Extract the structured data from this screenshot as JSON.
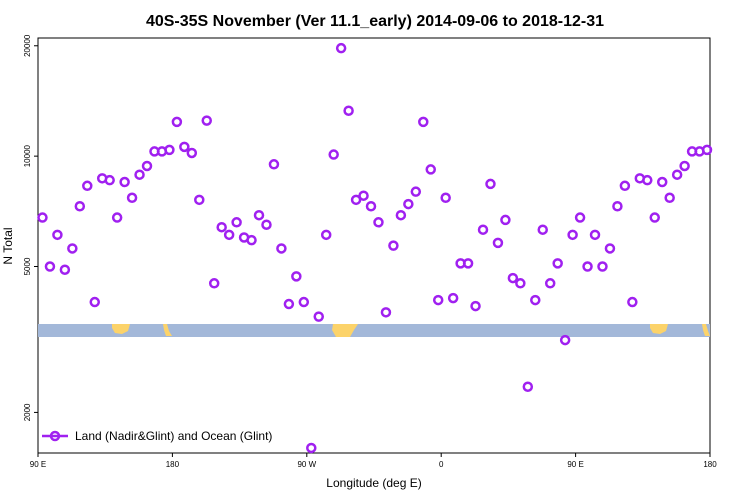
{
  "chart_data": {
    "type": "scatter",
    "title": "40S-35S November (Ver 11.1_early)   2014-09-06 to 2018-12-31",
    "xlabel": "Longitude (deg E)",
    "ylabel": "N Total",
    "y_scale": "log",
    "x_ticks": [
      {
        "value": 90,
        "label": "90 E"
      },
      {
        "value": 180,
        "label": "180"
      },
      {
        "value": 270,
        "label": "90 W"
      },
      {
        "value": 360,
        "label": "0"
      },
      {
        "value": 450,
        "label": "90 E"
      },
      {
        "value": 540,
        "label": "180"
      }
    ],
    "y_ticks": [
      {
        "value": 2000,
        "label": "2000"
      },
      {
        "value": 5000,
        "label": "5000"
      },
      {
        "value": 10000,
        "label": "10000"
      },
      {
        "value": 20000,
        "label": "20000"
      }
    ],
    "xlim": [
      90,
      540
    ],
    "ylim": [
      1550,
      21000
    ],
    "grid": false,
    "legend": {
      "position": "bottom-left",
      "entries": [
        {
          "label": "Land (Nadir&Glint) and Ocean (Glint)",
          "color": "#a020f0"
        }
      ]
    },
    "series": [
      {
        "name": "Land (Nadir&Glint) and Ocean (Glint)",
        "color": "#a020f0",
        "points": [
          [
            93,
            6800
          ],
          [
            98,
            5000
          ],
          [
            103,
            6100
          ],
          [
            108,
            4900
          ],
          [
            113,
            5600
          ],
          [
            118,
            7300
          ],
          [
            123,
            8300
          ],
          [
            128,
            4000
          ],
          [
            133,
            8700
          ],
          [
            138,
            8600
          ],
          [
            143,
            6800
          ],
          [
            148,
            8500
          ],
          [
            153,
            7700
          ],
          [
            158,
            8900
          ],
          [
            163,
            9400
          ],
          [
            168,
            10300
          ],
          [
            173,
            10300
          ],
          [
            178,
            10400
          ],
          [
            183,
            12400
          ],
          [
            188,
            10600
          ],
          [
            193,
            10200
          ],
          [
            198,
            7600
          ],
          [
            203,
            12500
          ],
          [
            208,
            4500
          ],
          [
            213,
            6400
          ],
          [
            218,
            6100
          ],
          [
            223,
            6600
          ],
          [
            228,
            6000
          ],
          [
            233,
            5900
          ],
          [
            238,
            6900
          ],
          [
            243,
            6500
          ],
          [
            248,
            9500
          ],
          [
            253,
            5600
          ],
          [
            258,
            3950
          ],
          [
            263,
            4700
          ],
          [
            268,
            4000
          ],
          [
            273,
            1600
          ],
          [
            278,
            3650
          ],
          [
            283,
            6100
          ],
          [
            288,
            10100
          ],
          [
            293,
            19700
          ],
          [
            298,
            13300
          ],
          [
            303,
            7600
          ],
          [
            308,
            7800
          ],
          [
            313,
            7300
          ],
          [
            318,
            6600
          ],
          [
            323,
            3750
          ],
          [
            328,
            5700
          ],
          [
            333,
            6900
          ],
          [
            338,
            7400
          ],
          [
            343,
            8000
          ],
          [
            348,
            12400
          ],
          [
            353,
            9200
          ],
          [
            358,
            4050
          ],
          [
            363,
            7700
          ],
          [
            368,
            4100
          ],
          [
            373,
            5100
          ],
          [
            378,
            5100
          ],
          [
            383,
            3900
          ],
          [
            388,
            6300
          ],
          [
            393,
            8400
          ],
          [
            398,
            5800
          ],
          [
            403,
            6700
          ],
          [
            408,
            4650
          ],
          [
            413,
            4500
          ],
          [
            418,
            2350
          ],
          [
            423,
            4050
          ],
          [
            428,
            6300
          ],
          [
            433,
            4500
          ],
          [
            438,
            5100
          ],
          [
            443,
            3150
          ],
          [
            448,
            6100
          ],
          [
            453,
            6800
          ],
          [
            458,
            5000
          ],
          [
            463,
            6100
          ],
          [
            468,
            5000
          ],
          [
            473,
            5600
          ],
          [
            478,
            7300
          ],
          [
            483,
            8300
          ],
          [
            488,
            4000
          ],
          [
            493,
            8700
          ],
          [
            498,
            8600
          ],
          [
            503,
            6800
          ],
          [
            508,
            8500
          ],
          [
            513,
            7700
          ],
          [
            518,
            8900
          ],
          [
            523,
            9400
          ],
          [
            528,
            10300
          ],
          [
            533,
            10300
          ],
          [
            538,
            10400
          ]
        ]
      }
    ]
  }
}
